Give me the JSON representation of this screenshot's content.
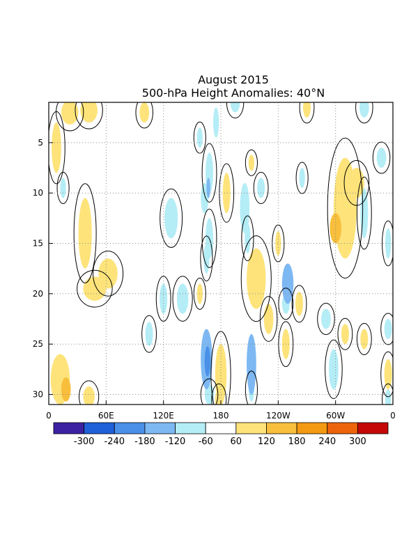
{
  "chart_data": {
    "type": "heatmap",
    "title": "August 2015",
    "subtitle": "500-hPa Height Anomalies: 40°N",
    "xlabel": "",
    "ylabel": "",
    "x_ticks": [
      "0",
      "60E",
      "120E",
      "180",
      "120W",
      "60W",
      "0"
    ],
    "x_range_deg_east": [
      0,
      360
    ],
    "y_ticks": [
      "5",
      "10",
      "15",
      "20",
      "25",
      "30"
    ],
    "y_range_day": [
      1,
      31
    ],
    "y_reversed": true,
    "grid": "dotted",
    "zero_contour": "0",
    "colorbar": {
      "orientation": "horizontal",
      "labels": [
        "-300",
        "-240",
        "-180",
        "-120",
        "-60",
        "60",
        "120",
        "180",
        "240",
        "300"
      ],
      "colors": [
        "#3c21a3",
        "#1f5fd8",
        "#4a90e8",
        "#7db8f2",
        "#b4edf6",
        "#ffffff",
        "#fde37a",
        "#f8bf3c",
        "#f49a12",
        "#ee640c",
        "#c40808"
      ]
    },
    "anomaly_blobs": [
      {
        "lon": 22,
        "day": 2.0,
        "rlon": 9,
        "rday": 1.2,
        "value": 75
      },
      {
        "lon": 42,
        "day": 1.8,
        "rlon": 9,
        "rday": 1.2,
        "value": 75
      },
      {
        "lon": 8,
        "day": 5.5,
        "rlon": 5,
        "rday": 2.5,
        "value": 75
      },
      {
        "lon": 38,
        "day": 14.0,
        "rlon": 7,
        "rday": 3.5,
        "value": 75
      },
      {
        "lon": 62,
        "day": 18.0,
        "rlon": 10,
        "rday": 1.5,
        "value": 75
      },
      {
        "lon": 48,
        "day": 19.5,
        "rlon": 12,
        "rday": 1.2,
        "value": 80
      },
      {
        "lon": 12,
        "day": 28.5,
        "rlon": 10,
        "rday": 2.5,
        "value": 100
      },
      {
        "lon": 18,
        "day": 29.5,
        "rlon": 5,
        "rday": 1.2,
        "value": 160
      },
      {
        "lon": 42,
        "day": 30.2,
        "rlon": 6,
        "rday": 1.0,
        "value": 70
      },
      {
        "lon": 100,
        "day": 2.0,
        "rlon": 5,
        "rday": 1.0,
        "value": 70
      },
      {
        "lon": 186,
        "day": 10.0,
        "rlon": 4,
        "rday": 2.0,
        "value": 80
      },
      {
        "lon": 180,
        "day": 28.0,
        "rlon": 6,
        "rday": 3.0,
        "value": 90
      },
      {
        "lon": 178,
        "day": 30.5,
        "rlon": 4,
        "rday": 1.0,
        "value": 80
      },
      {
        "lon": 212,
        "day": 7.0,
        "rlon": 3,
        "rday": 0.8,
        "value": 65
      },
      {
        "lon": 240,
        "day": 15.0,
        "rlon": 3,
        "rday": 1.2,
        "value": 70
      },
      {
        "lon": 217,
        "day": 18.5,
        "rlon": 10,
        "rday": 3.0,
        "value": 90
      },
      {
        "lon": 230,
        "day": 22.5,
        "rlon": 5,
        "rday": 1.5,
        "value": 70
      },
      {
        "lon": 248,
        "day": 25.0,
        "rlon": 4,
        "rday": 1.5,
        "value": 70
      },
      {
        "lon": 262,
        "day": 21.0,
        "rlon": 4,
        "rday": 1.2,
        "value": 65
      },
      {
        "lon": 310,
        "day": 11.5,
        "rlon": 12,
        "rday": 5.0,
        "value": 90
      },
      {
        "lon": 322,
        "day": 9.0,
        "rlon": 8,
        "rday": 1.5,
        "value": 80
      },
      {
        "lon": 300,
        "day": 13.5,
        "rlon": 6,
        "rday": 1.5,
        "value": 130
      },
      {
        "lon": 310,
        "day": 24.0,
        "rlon": 4,
        "rday": 1.0,
        "value": 70
      },
      {
        "lon": 330,
        "day": 24.5,
        "rlon": 4,
        "rday": 1.0,
        "value": 70
      },
      {
        "lon": 355,
        "day": 28.0,
        "rlon": 4,
        "rday": 1.5,
        "value": 70
      },
      {
        "lon": 270,
        "day": 1.5,
        "rlon": 4,
        "rday": 1.0,
        "value": 65
      },
      {
        "lon": 158,
        "day": 20.0,
        "rlon": 3,
        "rday": 1.0,
        "value": 65
      },
      {
        "lon": 15,
        "day": 9.5,
        "rlon": 3,
        "rday": 1.0,
        "value": -70
      },
      {
        "lon": 128,
        "day": 12.5,
        "rlon": 7,
        "rday": 2.0,
        "value": -80
      },
      {
        "lon": 120,
        "day": 20.5,
        "rlon": 4,
        "rday": 1.5,
        "value": -70
      },
      {
        "lon": 140,
        "day": 20.5,
        "rlon": 6,
        "rday": 1.5,
        "value": -75
      },
      {
        "lon": 105,
        "day": 24.0,
        "rlon": 4,
        "rday": 1.2,
        "value": -70
      },
      {
        "lon": 175,
        "day": 3.0,
        "rlon": 3,
        "rday": 1.5,
        "value": -100
      },
      {
        "lon": 158,
        "day": 4.5,
        "rlon": 3,
        "rday": 1.0,
        "value": -70
      },
      {
        "lon": 168,
        "day": 8.0,
        "rlon": 4,
        "rday": 2.0,
        "value": -80
      },
      {
        "lon": 163,
        "day": 10.5,
        "rlon": 4,
        "rday": 1.5,
        "value": -100
      },
      {
        "lon": 167,
        "day": 9.5,
        "rlon": 2,
        "rday": 1.0,
        "value": -130
      },
      {
        "lon": 168,
        "day": 14.5,
        "rlon": 4,
        "rday": 2.0,
        "value": -70
      },
      {
        "lon": 165,
        "day": 16.5,
        "rlon": 3,
        "rday": 1.5,
        "value": -70
      },
      {
        "lon": 165,
        "day": 26.5,
        "rlon": 6,
        "rday": 3.0,
        "value": -130
      },
      {
        "lon": 166,
        "day": 26.7,
        "rlon": 3,
        "rday": 1.5,
        "value": -200
      },
      {
        "lon": 168,
        "day": 30.0,
        "rlon": 5,
        "rday": 1.0,
        "value": -70
      },
      {
        "lon": 195,
        "day": 1.0,
        "rlon": 5,
        "rday": 1.0,
        "value": -70
      },
      {
        "lon": 205,
        "day": 11.5,
        "rlon": 5,
        "rday": 2.5,
        "value": -100
      },
      {
        "lon": 208,
        "day": 14.5,
        "rlon": 3,
        "rday": 1.5,
        "value": -70
      },
      {
        "lon": 222,
        "day": 9.5,
        "rlon": 4,
        "rday": 1.0,
        "value": -70
      },
      {
        "lon": 212,
        "day": 27.0,
        "rlon": 5,
        "rday": 3.0,
        "value": -130
      },
      {
        "lon": 212,
        "day": 29.5,
        "rlon": 3,
        "rday": 1.2,
        "value": -70
      },
      {
        "lon": 250,
        "day": 19.0,
        "rlon": 6,
        "rday": 2.0,
        "value": -150
      },
      {
        "lon": 248,
        "day": 21.0,
        "rlon": 4,
        "rday": 1.0,
        "value": -70
      },
      {
        "lon": 290,
        "day": 22.5,
        "rlon": 5,
        "rday": 1.0,
        "value": -70
      },
      {
        "lon": 298,
        "day": 27.5,
        "rlon": 5,
        "rday": 2.0,
        "value": -70
      },
      {
        "lon": 330,
        "day": 1.5,
        "rlon": 5,
        "rday": 1.0,
        "value": -70
      },
      {
        "lon": 330,
        "day": 12.0,
        "rlon": 4,
        "rday": 2.5,
        "value": -70
      },
      {
        "lon": 348,
        "day": 6.5,
        "rlon": 5,
        "rday": 1.0,
        "value": -70
      },
      {
        "lon": 355,
        "day": 15.0,
        "rlon": 3,
        "rday": 1.5,
        "value": -70
      },
      {
        "lon": 355,
        "day": 23.5,
        "rlon": 4,
        "rday": 1.0,
        "value": -70
      },
      {
        "lon": 355,
        "day": 30.5,
        "rlon": 3,
        "rday": 1.0,
        "value": -70
      },
      {
        "lon": 265,
        "day": 8.5,
        "rlon": 3,
        "rday": 1.0,
        "value": -65
      }
    ]
  }
}
